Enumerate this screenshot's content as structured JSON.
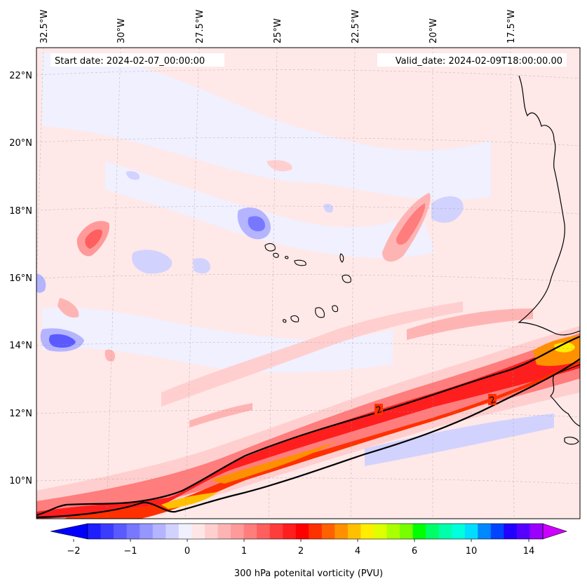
{
  "map": {
    "start_date": "Start date: 2024-02-07_00:00:00",
    "valid_date": "Valid_date: 2024-02-09T18:00:00.00",
    "lon_labels": [
      "32.5°W",
      "30°W",
      "27.5°W",
      "25°W",
      "22.5°W",
      "20°W",
      "17.5°W"
    ],
    "lat_labels": [
      "22°N",
      "20°N",
      "18°N",
      "16°N",
      "14°N",
      "12°N",
      "10°N"
    ],
    "contour_labels": [
      "2",
      "2"
    ]
  },
  "colorbar": {
    "title": "300 hPa potenital vorticity (PVU)",
    "tick_labels": [
      "−2",
      "−1",
      "0",
      "1",
      "2",
      "4",
      "6",
      "10",
      "14"
    ],
    "colors": [
      "#1e1eff",
      "#3c3cff",
      "#5a5aff",
      "#7878ff",
      "#9696ff",
      "#b4b4ff",
      "#d2d2ff",
      "#f0f0ff",
      "#ffe6e6",
      "#ffcfcf",
      "#ffb4b4",
      "#ff9a9a",
      "#ff7d7d",
      "#ff5f5f",
      "#ff3c3c",
      "#ff1e1e",
      "#ff0000",
      "#ff3000",
      "#ff6000",
      "#ff9000",
      "#ffc000",
      "#ffee00",
      "#ddff00",
      "#aaff00",
      "#77ff00",
      "#00ff00",
      "#00ff66",
      "#00ffaa",
      "#00ffdd",
      "#00ddff",
      "#0088ff",
      "#0044ff",
      "#2200ff",
      "#5500ff",
      "#9900ff"
    ],
    "under_color": "#0000ff",
    "over_color": "#cc00ff"
  }
}
